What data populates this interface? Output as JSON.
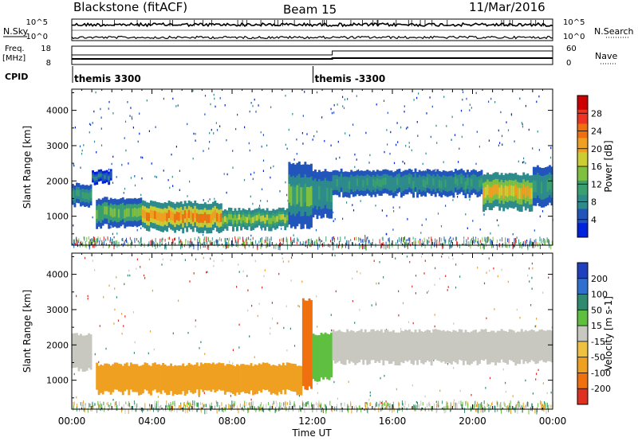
{
  "header": {
    "station": "Blackstone (fitACF)",
    "beam": "Beam 15",
    "date": "11/Mar/2016"
  },
  "left_labels": {
    "nsky": "N.Sky",
    "freq": "Freq.",
    "freq_unit": "[MHz]",
    "cpid": "CPID"
  },
  "right_labels": {
    "nsearch": "N.Search",
    "nave": "Nave"
  },
  "noise_panel": {
    "left_ticks": [
      "10^5",
      "10^0"
    ],
    "right_ticks": [
      "10^5",
      "10^0"
    ]
  },
  "freq_panel": {
    "left_ticks": [
      "18",
      "8"
    ],
    "right_ticks": [
      "60",
      "0"
    ]
  },
  "cpid_panel": {
    "segments": [
      {
        "start_hour": 0,
        "label": "themis 3300"
      },
      {
        "start_hour": 12,
        "label": "themis -3300"
      }
    ]
  },
  "time_axis": {
    "title": "Time UT",
    "range_hours": [
      0,
      24
    ],
    "tick_labels": [
      "00:00",
      "04:00",
      "08:00",
      "12:00",
      "16:00",
      "20:00",
      "00:00"
    ]
  },
  "range_axis": {
    "title": "Slant Range [km]",
    "range_km": [
      180,
      4600
    ],
    "tick_values": [
      1000,
      2000,
      3000,
      4000
    ],
    "tick_labels": [
      "1000",
      "2000",
      "3000",
      "4000"
    ]
  },
  "colors": {
    "scale": [
      "#0022dd",
      "#2255bb",
      "#2e8b8b",
      "#3aa070",
      "#7fc040",
      "#cccc33",
      "#f0a020",
      "#f07010",
      "#e02020",
      "#c00000"
    ],
    "ground": "#b0b0a8",
    "velocity_grey": "#c8c8c0",
    "velocity_orange": "#f0a020"
  },
  "colorbars": {
    "power": {
      "title": "Power [dB]",
      "tick_labels": [
        "28",
        "24",
        "20",
        "16",
        "12",
        "8",
        "4"
      ],
      "colors": [
        "#cc0000",
        "#ee3322",
        "#f07010",
        "#f0a020",
        "#cccc33",
        "#7fc040",
        "#3aa070",
        "#2e8b8b",
        "#2255bb",
        "#0022dd"
      ]
    },
    "velocity": {
      "title": "Velocity [m s-1]",
      "tick_labels": [
        "200",
        "100",
        "50",
        "15",
        "-15",
        "-50",
        "-100",
        "-200"
      ],
      "colors": [
        "#1f3fbf",
        "#2f6fcf",
        "#2f8a70",
        "#5fc040",
        "#c8c8c0",
        "#f0c040",
        "#f0a020",
        "#f07010",
        "#e03020"
      ]
    }
  },
  "chart_data": [
    {
      "type": "heatmap",
      "title": "Power [dB]",
      "xlabel": "Time UT",
      "ylabel": "Slant Range [km]",
      "xlim": [
        0,
        24
      ],
      "ylim": [
        180,
        4600
      ],
      "zlim": [
        0,
        32
      ],
      "bands": [
        {
          "t0": 0.0,
          "t1": 1.0,
          "r0": 1300,
          "r1": 1900,
          "power": 10
        },
        {
          "t0": 1.0,
          "t1": 2.0,
          "r0": 1950,
          "r1": 2300,
          "power": 7
        },
        {
          "t0": 1.2,
          "t1": 3.5,
          "r0": 700,
          "r1": 1500,
          "power": 14
        },
        {
          "t0": 3.5,
          "t1": 7.5,
          "r0": 600,
          "r1": 1400,
          "power": 22
        },
        {
          "t0": 7.5,
          "t1": 10.8,
          "r0": 650,
          "r1": 1200,
          "power": 16
        },
        {
          "t0": 10.8,
          "t1": 12.0,
          "r0": 700,
          "r1": 2500,
          "power": 12
        },
        {
          "t0": 12.0,
          "t1": 13.0,
          "r0": 1000,
          "r1": 2300,
          "power": 9
        },
        {
          "t0": 13.0,
          "t1": 20.5,
          "r0": 1600,
          "r1": 2300,
          "power": 9
        },
        {
          "t0": 20.5,
          "t1": 23.0,
          "r0": 1200,
          "r1": 2200,
          "power": 20
        },
        {
          "t0": 23.0,
          "t1": 24.0,
          "r0": 1300,
          "r1": 2400,
          "power": 10
        }
      ]
    },
    {
      "type": "heatmap",
      "title": "Velocity [m s-1]",
      "xlabel": "Time UT",
      "ylabel": "Slant Range [km]",
      "xlim": [
        0,
        24
      ],
      "ylim": [
        180,
        4600
      ],
      "zlim": [
        -250,
        250
      ],
      "bands": [
        {
          "t0": 0.0,
          "t1": 1.0,
          "r0": 1300,
          "r1": 2300,
          "velocity": 0
        },
        {
          "t0": 1.2,
          "t1": 11.5,
          "r0": 650,
          "r1": 1450,
          "velocity": -60
        },
        {
          "t0": 11.5,
          "t1": 12.0,
          "r0": 800,
          "r1": 3300,
          "velocity": -120
        },
        {
          "t0": 12.0,
          "t1": 13.0,
          "r0": 1000,
          "r1": 2300,
          "velocity": 20
        },
        {
          "t0": 13.0,
          "t1": 24.0,
          "r0": 1500,
          "r1": 2400,
          "velocity": 0
        }
      ]
    }
  ]
}
